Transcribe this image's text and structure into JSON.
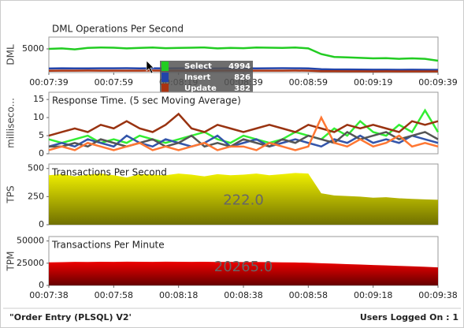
{
  "chart_data": [
    {
      "type": "line",
      "title": "DML Operations Per Second",
      "y_label": "DML",
      "x": [
        459,
        463,
        467,
        471,
        475,
        479,
        483,
        487,
        491,
        495,
        499,
        503,
        507,
        511,
        515,
        519,
        523,
        527,
        531,
        535,
        539,
        543,
        547,
        551,
        555,
        559,
        563,
        567,
        571,
        575,
        579
      ],
      "xlim": [
        459,
        579
      ],
      "xticks": [
        {
          "value": 459,
          "label": "00:07:39"
        },
        {
          "value": 479,
          "label": "00:07:59"
        },
        {
          "value": 499,
          "label": "00:08:19"
        },
        {
          "value": 519,
          "label": "00:08:39"
        },
        {
          "value": 539,
          "label": "00:08:59"
        },
        {
          "value": 559,
          "label": "00:09:19"
        },
        {
          "value": 579,
          "label": "00:09:39"
        }
      ],
      "ylim": [
        0,
        7500
      ],
      "yticks": [
        5000
      ],
      "series": [
        {
          "name": "Select",
          "color": "#22cc22",
          "values": [
            5000,
            5100,
            4900,
            5200,
            5300,
            5250,
            5100,
            5200,
            5300,
            5150,
            5200,
            5250,
            5300,
            5100,
            5200,
            5150,
            5300,
            5250,
            5200,
            5300,
            5100,
            3900,
            3300,
            3200,
            3100,
            3000,
            3050,
            2900,
            3000,
            2900,
            2500
          ]
        },
        {
          "name": "Insert",
          "color": "#2244aa",
          "values": [
            850,
            900,
            870,
            880,
            900,
            890,
            910,
            880,
            900,
            870,
            890,
            900,
            880,
            870,
            900,
            890,
            880,
            900,
            910,
            890,
            880,
            700,
            650,
            640,
            620,
            600,
            610,
            590,
            600,
            580,
            560
          ]
        },
        {
          "name": "Update",
          "color": "#aa3311",
          "values": [
            380,
            400,
            390,
            410,
            400,
            395,
            405,
            400,
            410,
            390,
            400,
            405,
            395,
            400,
            410,
            400,
            395,
            405,
            400,
            410,
            400,
            300,
            290,
            280,
            270,
            260,
            270,
            260,
            250,
            255,
            240
          ]
        }
      ],
      "hover_values": [
        4994,
        826,
        382
      ]
    },
    {
      "type": "line",
      "title": "Response Time. (5 sec Moving Average)",
      "y_label": "milliseco...",
      "x": [
        459,
        463,
        467,
        471,
        475,
        479,
        483,
        487,
        491,
        495,
        499,
        503,
        507,
        511,
        515,
        519,
        523,
        527,
        531,
        535,
        539,
        543,
        547,
        551,
        555,
        559,
        563,
        567,
        571,
        575,
        579
      ],
      "xlim": [
        459,
        579
      ],
      "ylim": [
        0,
        17
      ],
      "yticks": [
        0,
        5,
        10,
        15
      ],
      "series": [
        {
          "color": "#33ee33",
          "values": [
            4,
            3,
            4,
            5,
            3,
            4,
            3,
            5,
            4,
            3,
            4,
            5,
            6,
            4,
            3,
            5,
            4,
            3,
            4,
            6,
            5,
            4,
            7,
            5,
            9,
            6,
            5,
            8,
            6,
            12,
            6
          ]
        },
        {
          "color": "#993311",
          "values": [
            5,
            6,
            7,
            6,
            8,
            7,
            9,
            7,
            6,
            8,
            11,
            7,
            6,
            8,
            7,
            6,
            7,
            8,
            7,
            6,
            8,
            7,
            6,
            8,
            7,
            8,
            7,
            6,
            9,
            8,
            9
          ]
        },
        {
          "color": "#3355aa",
          "values": [
            2,
            3,
            2,
            4,
            3,
            2,
            5,
            3,
            2,
            4,
            3,
            2,
            3,
            5,
            2,
            3,
            4,
            2,
            3,
            4,
            3,
            2,
            4,
            3,
            5,
            3,
            4,
            3,
            5,
            4,
            3
          ]
        },
        {
          "color": "#555555",
          "values": [
            2,
            2,
            3,
            2,
            4,
            3,
            2,
            3,
            4,
            2,
            3,
            5,
            2,
            3,
            2,
            4,
            3,
            2,
            4,
            3,
            5,
            4,
            3,
            6,
            4,
            5,
            6,
            4,
            5,
            6,
            4
          ]
        },
        {
          "color": "#ff7733",
          "values": [
            1,
            2,
            1,
            3,
            2,
            1,
            2,
            3,
            1,
            2,
            1,
            2,
            3,
            1,
            2,
            2,
            1,
            3,
            2,
            1,
            2,
            10,
            3,
            2,
            4,
            2,
            3,
            5,
            2,
            3,
            2
          ]
        }
      ]
    },
    {
      "type": "area",
      "title": "Transactions Per Second",
      "y_label": "TPS",
      "x": [
        459,
        463,
        467,
        471,
        475,
        479,
        483,
        487,
        491,
        495,
        499,
        503,
        507,
        511,
        515,
        519,
        523,
        527,
        531,
        535,
        539,
        543,
        547,
        551,
        555,
        559,
        563,
        567,
        571,
        575,
        579
      ],
      "xlim": [
        459,
        579
      ],
      "ylim": [
        0,
        540
      ],
      "yticks": [
        0,
        250,
        500
      ],
      "series": [
        {
          "color": "#f0f000",
          "color_dark": "#707000",
          "values": [
            440,
            450,
            430,
            445,
            455,
            440,
            420,
            450,
            445,
            440,
            455,
            445,
            430,
            450,
            440,
            445,
            455,
            440,
            450,
            460,
            455,
            280,
            260,
            255,
            250,
            240,
            245,
            235,
            230,
            225,
            222
          ]
        }
      ],
      "display_value": "222.0"
    },
    {
      "type": "area",
      "title": "Transactions Per Minute",
      "y_label": "TPM",
      "x": [
        458,
        462,
        466,
        470,
        474,
        478,
        482,
        486,
        490,
        494,
        498,
        502,
        506,
        510,
        514,
        518,
        522,
        526,
        530,
        534,
        538,
        542,
        546,
        550,
        554,
        558,
        562,
        566,
        570,
        574,
        578
      ],
      "xlim": [
        458,
        578
      ],
      "xticks": [
        {
          "value": 458,
          "label": "00:07:38"
        },
        {
          "value": 478,
          "label": "00:07:58"
        },
        {
          "value": 498,
          "label": "00:08:18"
        },
        {
          "value": 518,
          "label": "00:08:38"
        },
        {
          "value": 538,
          "label": "00:08:58"
        },
        {
          "value": 558,
          "label": "00:09:18"
        },
        {
          "value": 578,
          "label": "00:09:38"
        }
      ],
      "ylim": [
        0,
        55000
      ],
      "yticks": [
        0,
        25000,
        50000
      ],
      "series": [
        {
          "color": "#ee0000",
          "color_dark": "#660000",
          "values": [
            26000,
            26200,
            26500,
            26400,
            26600,
            26500,
            26700,
            26600,
            26500,
            26700,
            26600,
            26500,
            26600,
            26400,
            26500,
            26300,
            26400,
            26200,
            26000,
            25800,
            25500,
            25000,
            24500,
            24000,
            23500,
            23000,
            22500,
            22000,
            21500,
            21000,
            20265
          ]
        }
      ],
      "display_value": "20265.0"
    }
  ],
  "footer": {
    "left": "\"Order Entry (PLSQL) V2'",
    "right": "Users Logged On : 1"
  }
}
